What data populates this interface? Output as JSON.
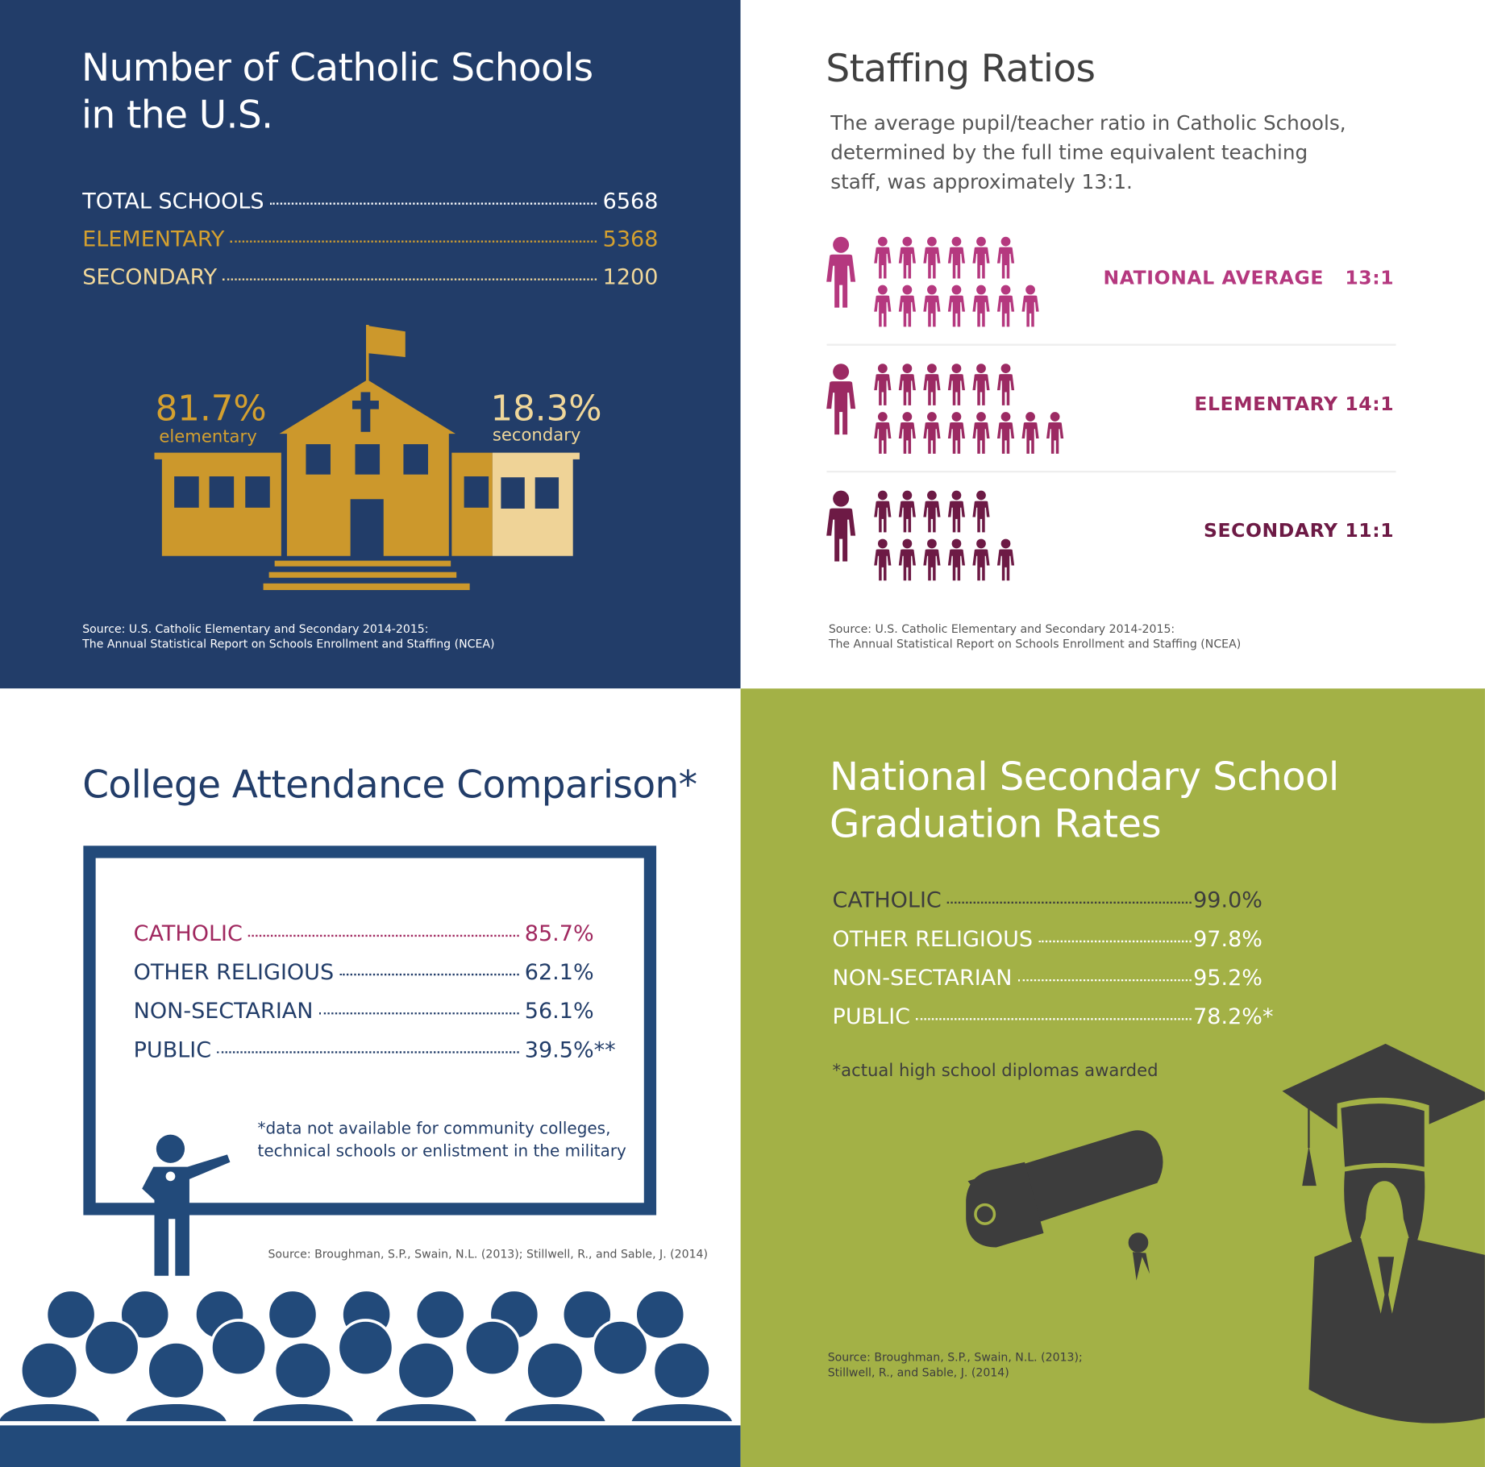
{
  "schools": {
    "title_line1": "Number of Catholic Schools",
    "title_line2": "in the U.S.",
    "rows": [
      {
        "label": "TOTAL SCHOOLS",
        "value": "6568",
        "color": "#ffffff"
      },
      {
        "label": "ELEMENTARY",
        "value": "5368",
        "color": "#d4a02f"
      },
      {
        "label": "SECONDARY",
        "value": "1200",
        "color": "#f0d79a"
      }
    ],
    "elementary_pct": "81.7%",
    "elementary_label": "elementary",
    "secondary_pct": "18.3%",
    "secondary_label": "secondary",
    "source_line1": "Source: U.S. Catholic Elementary and Secondary 2014-2015:",
    "source_line2": "The Annual Statistical Report on Schools Enrollment and Staffing (NCEA)",
    "colors": {
      "background": "#223d69",
      "building": "#cc982c",
      "secondary_wing": "#efd397"
    }
  },
  "staffing": {
    "title": "Staffing Ratios",
    "description": "The average pupil/teacher ratio in Catholic Schools, determined by the full time equivalent teaching staff, was approximately 13:1.",
    "rows": [
      {
        "label": "NATIONAL AVERAGE   13:1",
        "students_row1": 6,
        "students_row2": 7,
        "color": "#b5387f"
      },
      {
        "label": "ELEMENTARY 14:1",
        "students_row1": 6,
        "students_row2": 8,
        "color": "#9c2a63"
      },
      {
        "label": "SECONDARY 11:1",
        "students_row1": 5,
        "students_row2": 6,
        "color": "#6d1a45"
      }
    ],
    "source_line1": "Source: U.S. Catholic Elementary and Secondary 2014-2015:",
    "source_line2": "The Annual Statistical Report on Schools Enrollment and Staffing (NCEA)"
  },
  "college": {
    "title": "College Attendance Comparison*",
    "rows": [
      {
        "label": "CATHOLIC",
        "value": "85.7%",
        "color": "#a0285f"
      },
      {
        "label": "OTHER RELIGIOUS",
        "value": "62.1%",
        "color": "#223d69"
      },
      {
        "label": "NON-SECTARIAN",
        "value": "56.1%",
        "color": "#223d69"
      },
      {
        "label": "PUBLIC",
        "value": "39.5%**",
        "color": "#223d69"
      }
    ],
    "note_line1": "*data not available for community colleges,",
    "note_line2": "technical schools or enlistment in the military",
    "source": "Source:  Broughman, S.P., Swain, N.L. (2013); Stillwell, R., and Sable, J. (2014)",
    "colors": {
      "primary": "#224a7a"
    }
  },
  "graduation": {
    "title_line1": "National Secondary School",
    "title_line2": "Graduation Rates",
    "rows": [
      {
        "label": "CATHOLIC",
        "value": "99.0%",
        "color": "#3d3d3d"
      },
      {
        "label": "OTHER RELIGIOUS",
        "value": "97.8%",
        "color": "#ffffff"
      },
      {
        "label": "NON-SECTARIAN",
        "value": "95.2%",
        "color": "#ffffff"
      },
      {
        "label": "PUBLIC",
        "value": "78.2%*",
        "color": "#ffffff"
      }
    ],
    "note": "*actual high school diplomas awarded",
    "source_line1": "Source:  Broughman, S.P., Swain, N.L. (2013);",
    "source_line2": "Stillwell, R., and Sable, J. (2014)",
    "colors": {
      "background": "#a3b146",
      "icon": "#3d3d3d"
    }
  }
}
